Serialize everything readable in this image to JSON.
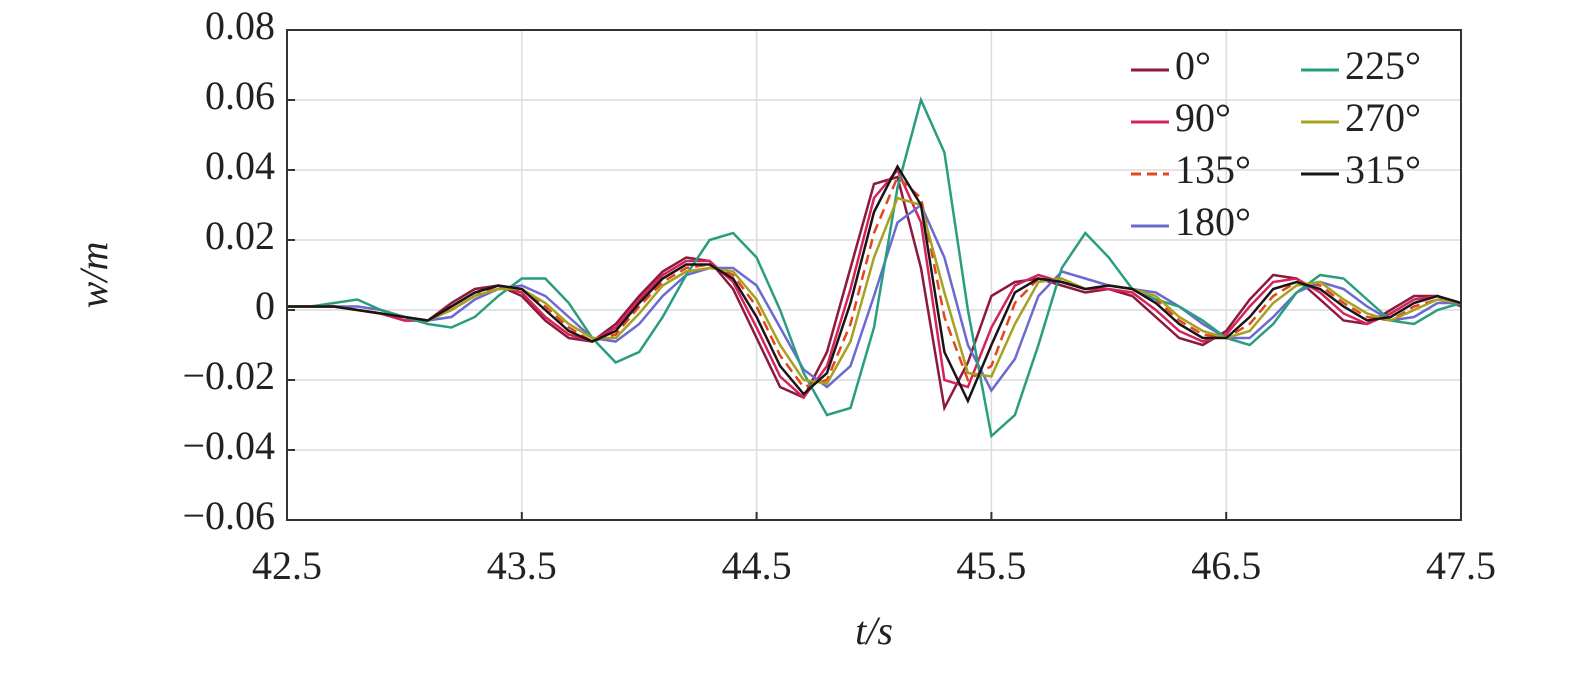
{
  "chart_data": {
    "type": "line",
    "x_label": "t/s",
    "y_label": "w/m",
    "x": [
      42.5,
      42.6,
      42.7,
      42.8,
      42.9,
      43.0,
      43.1,
      43.2,
      43.3,
      43.4,
      43.5,
      43.6,
      43.7,
      43.8,
      43.9,
      44.0,
      44.1,
      44.2,
      44.3,
      44.4,
      44.5,
      44.6,
      44.7,
      44.8,
      44.9,
      45.0,
      45.1,
      45.2,
      45.3,
      45.4,
      45.5,
      45.6,
      45.7,
      45.8,
      45.9,
      46.0,
      46.1,
      46.2,
      46.3,
      46.4,
      46.5,
      46.6,
      46.7,
      46.8,
      46.9,
      47.0,
      47.1,
      47.2,
      47.3,
      47.4,
      47.5
    ],
    "series": [
      {
        "name": "0°",
        "color": "#8b1a3c",
        "values": [
          0.001,
          0.001,
          0.001,
          0.0,
          -0.001,
          -0.003,
          -0.003,
          0.002,
          0.006,
          0.007,
          0.004,
          -0.003,
          -0.008,
          -0.009,
          -0.004,
          0.004,
          0.011,
          0.015,
          0.014,
          0.006,
          -0.008,
          -0.022,
          -0.025,
          -0.012,
          0.012,
          0.036,
          0.038,
          0.012,
          -0.028,
          -0.015,
          0.004,
          0.008,
          0.009,
          0.007,
          0.005,
          0.006,
          0.004,
          -0.002,
          -0.008,
          -0.01,
          -0.006,
          0.003,
          0.01,
          0.009,
          0.003,
          -0.003,
          -0.004,
          0.0,
          0.004,
          0.004,
          0.001
        ]
      },
      {
        "name": "90°",
        "color": "#d6245a",
        "values": [
          0.001,
          0.001,
          0.001,
          0.0,
          -0.001,
          -0.003,
          -0.003,
          0.001,
          0.005,
          0.007,
          0.005,
          -0.002,
          -0.007,
          -0.009,
          -0.005,
          0.003,
          0.01,
          0.014,
          0.014,
          0.008,
          -0.005,
          -0.019,
          -0.025,
          -0.016,
          0.006,
          0.032,
          0.04,
          0.025,
          -0.02,
          -0.022,
          -0.005,
          0.007,
          0.01,
          0.008,
          0.006,
          0.006,
          0.005,
          0.0,
          -0.006,
          -0.009,
          -0.007,
          0.001,
          0.008,
          0.009,
          0.005,
          -0.001,
          -0.004,
          -0.001,
          0.003,
          0.004,
          0.001
        ]
      },
      {
        "name": "135°",
        "color": "#e2461e",
        "dashed": true,
        "values": [
          0.001,
          0.001,
          0.001,
          0.0,
          -0.001,
          -0.002,
          -0.003,
          0.0,
          0.004,
          0.007,
          0.006,
          0.001,
          -0.005,
          -0.009,
          -0.007,
          0.001,
          0.008,
          0.012,
          0.013,
          0.01,
          0.001,
          -0.013,
          -0.022,
          -0.02,
          -0.004,
          0.022,
          0.038,
          0.032,
          -0.002,
          -0.02,
          -0.016,
          0.002,
          0.009,
          0.008,
          0.006,
          0.007,
          0.006,
          0.003,
          -0.003,
          -0.007,
          -0.008,
          -0.004,
          0.004,
          0.008,
          0.007,
          0.002,
          -0.002,
          -0.003,
          0.001,
          0.003,
          0.002
        ]
      },
      {
        "name": "180°",
        "color": "#6a6ad0",
        "values": [
          0.001,
          0.001,
          0.001,
          0.001,
          0.0,
          -0.002,
          -0.003,
          -0.002,
          0.003,
          0.006,
          0.007,
          0.004,
          -0.002,
          -0.008,
          -0.009,
          -0.004,
          0.004,
          0.01,
          0.012,
          0.012,
          0.007,
          -0.005,
          -0.017,
          -0.022,
          -0.016,
          0.004,
          0.025,
          0.03,
          0.015,
          -0.01,
          -0.023,
          -0.014,
          0.004,
          0.011,
          0.009,
          0.007,
          0.006,
          0.005,
          0.001,
          -0.004,
          -0.008,
          -0.008,
          -0.002,
          0.005,
          0.008,
          0.006,
          0.001,
          -0.003,
          -0.002,
          0.002,
          0.002
        ]
      },
      {
        "name": "225°",
        "color": "#2a9d80",
        "values": [
          0.001,
          0.001,
          0.002,
          0.003,
          0.0,
          -0.002,
          -0.004,
          -0.005,
          -0.002,
          0.004,
          0.009,
          0.009,
          0.002,
          -0.008,
          -0.015,
          -0.012,
          -0.002,
          0.01,
          0.02,
          0.022,
          0.015,
          0.0,
          -0.018,
          -0.03,
          -0.028,
          -0.005,
          0.035,
          0.06,
          0.045,
          0.0,
          -0.036,
          -0.03,
          -0.01,
          0.012,
          0.022,
          0.015,
          0.006,
          0.003,
          0.001,
          -0.003,
          -0.008,
          -0.01,
          -0.004,
          0.005,
          0.01,
          0.009,
          0.003,
          -0.003,
          -0.004,
          0.0,
          0.002
        ]
      },
      {
        "name": "270°",
        "color": "#a8a020",
        "values": [
          0.001,
          0.001,
          0.001,
          0.0,
          -0.001,
          -0.002,
          -0.003,
          0.0,
          0.004,
          0.006,
          0.006,
          0.002,
          -0.004,
          -0.008,
          -0.008,
          -0.001,
          0.007,
          0.011,
          0.012,
          0.011,
          0.003,
          -0.01,
          -0.02,
          -0.021,
          -0.009,
          0.015,
          0.032,
          0.03,
          0.005,
          -0.018,
          -0.019,
          -0.004,
          0.008,
          0.009,
          0.006,
          0.007,
          0.006,
          0.004,
          -0.002,
          -0.006,
          -0.008,
          -0.006,
          0.002,
          0.007,
          0.008,
          0.003,
          -0.001,
          -0.003,
          0.0,
          0.003,
          0.002
        ]
      },
      {
        "name": "315°",
        "color": "#1a1416",
        "values": [
          0.001,
          0.001,
          0.001,
          0.0,
          -0.001,
          -0.002,
          -0.003,
          0.001,
          0.005,
          0.007,
          0.006,
          0.0,
          -0.006,
          -0.009,
          -0.006,
          0.002,
          0.009,
          0.013,
          0.013,
          0.009,
          -0.002,
          -0.016,
          -0.024,
          -0.018,
          0.002,
          0.028,
          0.041,
          0.03,
          -0.012,
          -0.026,
          -0.01,
          0.005,
          0.009,
          0.008,
          0.006,
          0.007,
          0.006,
          0.002,
          -0.004,
          -0.008,
          -0.008,
          -0.002,
          0.006,
          0.008,
          0.006,
          0.001,
          -0.003,
          -0.002,
          0.002,
          0.004,
          0.002
        ]
      }
    ],
    "xlim": [
      42.5,
      47.5
    ],
    "xticks": [
      42.5,
      43.5,
      44.5,
      45.5,
      46.5,
      47.5
    ],
    "ylim": [
      -0.06,
      0.08
    ],
    "yticks": [
      {
        "value": -0.06,
        "label": "−0.06"
      },
      {
        "value": -0.04,
        "label": "−0.04"
      },
      {
        "value": -0.02,
        "label": "−0.02"
      },
      0,
      0.02,
      0.04,
      0.06,
      0.08
    ],
    "grid": true,
    "legend": "upper-right"
  }
}
